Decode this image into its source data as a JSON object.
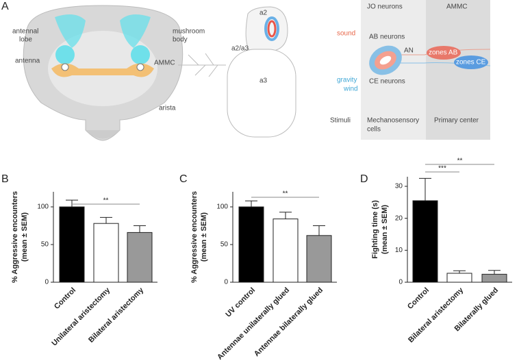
{
  "panel_labels": [
    "A",
    "B",
    "C",
    "D"
  ],
  "diagram": {
    "head": {
      "antennal_lobe": [
        "antennal",
        "lobe"
      ],
      "mushroom_body": [
        "mushroom",
        "body"
      ],
      "antenna": "antenna",
      "ammc": "AMMC",
      "arista": "arista"
    },
    "antenna": {
      "a2": "a2",
      "a2_a3": "a2/a3",
      "a3": "a3"
    },
    "circuit": {
      "columns": [
        "JO neurons",
        "AMMC"
      ],
      "sound": "sound",
      "ab_neurons": "AB neurons",
      "an": "AN",
      "zones_ab": "zones AB",
      "gravity_wind": [
        "gravity",
        "wind"
      ],
      "zones_ce": "zones CE",
      "ce_neurons": "CE neurons",
      "stimuli": "Stimuli",
      "mechanosensory": [
        "Mechanosensory",
        "cells"
      ],
      "primary": "Primary center"
    }
  },
  "chart_data": [
    {
      "type": "bar",
      "categories": [
        "Control",
        "Unilateral aristectomy",
        "Bilateral aristectomy"
      ],
      "values": [
        100,
        78,
        66
      ],
      "errors": [
        9,
        8,
        9
      ],
      "colors": [
        "#000000",
        "#ffffff",
        "#999999"
      ],
      "ylabel": [
        "% Aggressive encounters",
        "(mean ± SEM)"
      ],
      "ylim": [
        0,
        120
      ],
      "yticks": [
        0,
        50,
        100
      ],
      "comparisons": [
        {
          "label": "**",
          "between": [
            0,
            2
          ]
        }
      ]
    },
    {
      "type": "bar",
      "categories": [
        "UV control",
        "Antennae unilaterally glued",
        "Antennae bilaterally glued"
      ],
      "values": [
        100,
        84,
        62
      ],
      "errors": [
        8,
        9,
        13
      ],
      "colors": [
        "#000000",
        "#ffffff",
        "#999999"
      ],
      "ylabel": [
        "% Aggressive encounters",
        "(mean ± SEM)"
      ],
      "ylim": [
        0,
        120
      ],
      "yticks": [
        0,
        50,
        100
      ],
      "comparisons": [
        {
          "label": "**",
          "between": [
            0,
            2
          ]
        }
      ]
    },
    {
      "type": "bar",
      "categories": [
        "Control",
        "Bilateral aristectomy",
        "Bilaterally glued"
      ],
      "values": [
        25.5,
        2.8,
        2.5
      ],
      "errors": [
        7,
        0.8,
        1.2
      ],
      "colors": [
        "#000000",
        "#ffffff",
        "#999999"
      ],
      "ylabel": [
        "Fighting time (s)",
        "(mean ± SEM)"
      ],
      "ylim": [
        0,
        33
      ],
      "yticks": [
        0,
        10,
        20,
        30
      ],
      "comparisons": [
        {
          "label": "***",
          "between": [
            0,
            1
          ]
        },
        {
          "label": "**",
          "between": [
            0,
            2
          ]
        }
      ]
    }
  ]
}
